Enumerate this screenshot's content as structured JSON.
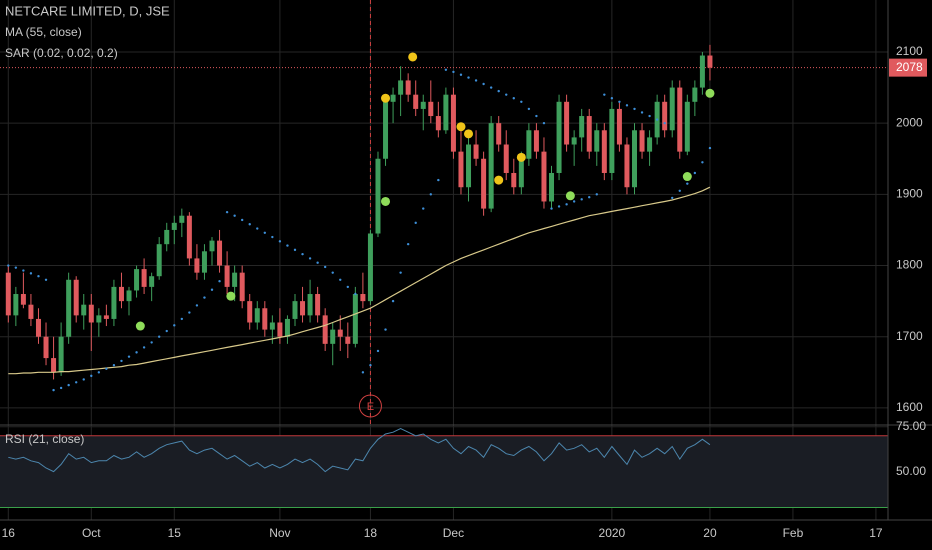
{
  "chart_data": {
    "type": "candlestick",
    "title": "NETCARE LIMITED, D, JSE",
    "ma_label": "MA (55, close)",
    "sar_label": "SAR (0.02, 0.02, 0.2)",
    "rsi_label": "RSI (21, close)",
    "event_label": "E",
    "event_x": 48,
    "last_price": 2078,
    "up_color": "#3f9f5c",
    "down_color": "#e05a5e",
    "ma_color": "#d8c98a",
    "sar_color": "#3d8fd8",
    "rsi_color": "#4c86ad",
    "xlim": [
      -1.1,
      116.6
    ],
    "xticks": [
      {
        "value": 0,
        "label": "16"
      },
      {
        "value": 11,
        "label": "Oct"
      },
      {
        "value": 22,
        "label": "15"
      },
      {
        "value": 36,
        "label": "Nov"
      },
      {
        "value": 48,
        "label": "18"
      },
      {
        "value": 59,
        "label": "Dec"
      },
      {
        "value": 80,
        "label": "2020"
      },
      {
        "value": 93,
        "label": "20"
      },
      {
        "value": 104,
        "label": "Feb"
      },
      {
        "value": 115,
        "label": "17"
      }
    ],
    "ylim": [
      1576,
      2173
    ],
    "yticks": [
      1600,
      1700,
      1800,
      1900,
      2000,
      2100
    ],
    "rsi_ylim": [
      23,
      76
    ],
    "rsi_yticks": [
      {
        "value": 75,
        "label": "75.00"
      },
      {
        "value": 50,
        "label": "50.00"
      }
    ],
    "rsi_bands": [
      70,
      30
    ],
    "candles": [
      [
        1790,
        1800,
        1720,
        1730
      ],
      [
        1730,
        1770,
        1715,
        1760
      ],
      [
        1760,
        1790,
        1740,
        1745
      ],
      [
        1745,
        1760,
        1715,
        1725
      ],
      [
        1725,
        1740,
        1690,
        1700
      ],
      [
        1700,
        1720,
        1660,
        1670
      ],
      [
        1670,
        1700,
        1640,
        1650
      ],
      [
        1650,
        1720,
        1645,
        1700
      ],
      [
        1700,
        1790,
        1690,
        1780
      ],
      [
        1780,
        1785,
        1720,
        1730
      ],
      [
        1730,
        1760,
        1710,
        1745
      ],
      [
        1745,
        1760,
        1680,
        1720
      ],
      [
        1720,
        1740,
        1700,
        1730
      ],
      [
        1730,
        1745,
        1715,
        1725
      ],
      [
        1725,
        1780,
        1715,
        1770
      ],
      [
        1770,
        1790,
        1740,
        1750
      ],
      [
        1750,
        1770,
        1730,
        1765
      ],
      [
        1765,
        1800,
        1755,
        1795
      ],
      [
        1795,
        1810,
        1760,
        1770
      ],
      [
        1770,
        1790,
        1750,
        1785
      ],
      [
        1785,
        1840,
        1780,
        1830
      ],
      [
        1830,
        1860,
        1820,
        1850
      ],
      [
        1850,
        1870,
        1830,
        1860
      ],
      [
        1860,
        1880,
        1840,
        1870
      ],
      [
        1870,
        1875,
        1800,
        1810
      ],
      [
        1810,
        1830,
        1780,
        1790
      ],
      [
        1790,
        1830,
        1780,
        1820
      ],
      [
        1820,
        1840,
        1800,
        1835
      ],
      [
        1835,
        1850,
        1790,
        1800
      ],
      [
        1800,
        1820,
        1760,
        1770
      ],
      [
        1770,
        1800,
        1750,
        1790
      ],
      [
        1790,
        1800,
        1740,
        1750
      ],
      [
        1750,
        1760,
        1710,
        1720
      ],
      [
        1720,
        1750,
        1710,
        1740
      ],
      [
        1740,
        1750,
        1700,
        1710
      ],
      [
        1710,
        1730,
        1690,
        1720
      ],
      [
        1720,
        1740,
        1690,
        1700
      ],
      [
        1700,
        1730,
        1690,
        1725
      ],
      [
        1725,
        1760,
        1715,
        1750
      ],
      [
        1750,
        1770,
        1720,
        1730
      ],
      [
        1730,
        1780,
        1720,
        1760
      ],
      [
        1760,
        1770,
        1720,
        1730
      ],
      [
        1730,
        1740,
        1680,
        1690
      ],
      [
        1690,
        1720,
        1660,
        1710
      ],
      [
        1710,
        1730,
        1680,
        1700
      ],
      [
        1700,
        1720,
        1670,
        1690
      ],
      [
        1690,
        1770,
        1685,
        1760
      ],
      [
        1760,
        1790,
        1740,
        1750
      ],
      [
        1750,
        1850,
        1745,
        1845
      ],
      [
        1845,
        1960,
        1840,
        1950
      ],
      [
        1950,
        2040,
        1940,
        2030
      ],
      [
        2030,
        2050,
        2000,
        2040
      ],
      [
        2040,
        2080,
        2010,
        2060
      ],
      [
        2060,
        2070,
        2030,
        2040
      ],
      [
        2040,
        2060,
        2010,
        2020
      ],
      [
        2020,
        2040,
        1990,
        2030
      ],
      [
        2030,
        2060,
        2000,
        2010
      ],
      [
        2010,
        2030,
        1980,
        1990
      ],
      [
        1990,
        2050,
        1985,
        2040
      ],
      [
        2040,
        2050,
        1950,
        1960
      ],
      [
        1960,
        2000,
        1900,
        1910
      ],
      [
        1910,
        1980,
        1890,
        1970
      ],
      [
        1970,
        1990,
        1940,
        1950
      ],
      [
        1950,
        1960,
        1870,
        1880
      ],
      [
        1880,
        2010,
        1875,
        2000
      ],
      [
        2000,
        2010,
        1960,
        1970
      ],
      [
        1970,
        1990,
        1920,
        1930
      ],
      [
        1930,
        1950,
        1900,
        1910
      ],
      [
        1910,
        1960,
        1900,
        1950
      ],
      [
        1950,
        2000,
        1940,
        1990
      ],
      [
        1990,
        2000,
        1950,
        1960
      ],
      [
        1960,
        1980,
        1880,
        1890
      ],
      [
        1890,
        1940,
        1880,
        1930
      ],
      [
        1930,
        2040,
        1920,
        2030
      ],
      [
        2030,
        2040,
        1960,
        1970
      ],
      [
        1970,
        1990,
        1940,
        1980
      ],
      [
        1980,
        2020,
        1960,
        2010
      ],
      [
        2010,
        2020,
        1950,
        1960
      ],
      [
        1960,
        2000,
        1940,
        1990
      ],
      [
        1990,
        2000,
        1920,
        1930
      ],
      [
        1930,
        2030,
        1920,
        2020
      ],
      [
        2020,
        2030,
        1960,
        1970
      ],
      [
        1970,
        1980,
        1900,
        1910
      ],
      [
        1910,
        2000,
        1900,
        1990
      ],
      [
        1990,
        2000,
        1950,
        1960
      ],
      [
        1960,
        1990,
        1940,
        1980
      ],
      [
        1980,
        2040,
        1970,
        2030
      ],
      [
        2030,
        2040,
        1980,
        1990
      ],
      [
        1990,
        2060,
        1980,
        2050
      ],
      [
        2050,
        2060,
        1950,
        1960
      ],
      [
        1960,
        2040,
        1955,
        2030
      ],
      [
        2030,
        2060,
        2010,
        2050
      ],
      [
        2050,
        2100,
        2040,
        2095
      ],
      [
        2095,
        2110,
        2060,
        2078
      ]
    ],
    "ma": [
      1648,
      1648,
      1649,
      1649,
      1650,
      1650,
      1650,
      1651,
      1651,
      1652,
      1653,
      1654,
      1655,
      1656,
      1657,
      1658,
      1660,
      1661,
      1663,
      1665,
      1667,
      1669,
      1671,
      1673,
      1675,
      1677,
      1679,
      1681,
      1683,
      1685,
      1687,
      1689,
      1691,
      1693,
      1695,
      1697,
      1699,
      1701,
      1704,
      1707,
      1710,
      1713,
      1716,
      1720,
      1724,
      1728,
      1732,
      1736,
      1740,
      1746,
      1752,
      1758,
      1764,
      1770,
      1776,
      1782,
      1788,
      1794,
      1800,
      1805,
      1810,
      1814,
      1818,
      1822,
      1826,
      1830,
      1834,
      1838,
      1842,
      1846,
      1849,
      1852,
      1855,
      1858,
      1861,
      1864,
      1867,
      1870,
      1872,
      1874,
      1876,
      1878,
      1880,
      1882,
      1884,
      1886,
      1888,
      1890,
      1892,
      1895,
      1898,
      1901,
      1905,
      1910
    ],
    "sar": [
      1800,
      1797,
      1793,
      1789,
      1785,
      1780,
      1625,
      1628,
      1632,
      1636,
      1640,
      1645,
      1650,
      1655,
      1660,
      1666,
      1672,
      1678,
      1685,
      1692,
      1700,
      1708,
      1716,
      1725,
      1734,
      1744,
      1755,
      1766,
      1778,
      1875,
      1870,
      1864,
      1858,
      1852,
      1846,
      1840,
      1834,
      1828,
      1822,
      1816,
      1810,
      1804,
      1798,
      1790,
      1780,
      1770,
      1760,
      1650,
      1660,
      1680,
      1710,
      1750,
      1790,
      1830,
      1860,
      1880,
      1900,
      1920,
      2075,
      2072,
      2068,
      2064,
      2060,
      2055,
      2050,
      2045,
      2040,
      2035,
      2030,
      2020,
      2010,
      2000,
      1880,
      1883,
      1886,
      1890,
      1893,
      1896,
      1900,
      2040,
      2035,
      2030,
      2025,
      2020,
      2015,
      2010,
      2005,
      2000,
      1895,
      1905,
      1915,
      1930,
      1945,
      1965
    ],
    "markers_yellow": [
      [
        50,
        2035
      ],
      [
        53.6,
        2093
      ],
      [
        60,
        1995
      ],
      [
        61,
        1985
      ],
      [
        65,
        1920
      ],
      [
        68,
        1952
      ]
    ],
    "markers_green": [
      [
        17.5,
        1715
      ],
      [
        29.5,
        1757
      ],
      [
        50,
        1890
      ],
      [
        74.5,
        1898
      ],
      [
        90,
        1925
      ],
      [
        93,
        2042
      ]
    ],
    "rsi": [
      58,
      57,
      58,
      56,
      55,
      52,
      50,
      54,
      60,
      57,
      58,
      55,
      56,
      56,
      59,
      57,
      58,
      61,
      58,
      60,
      63,
      65,
      66,
      67,
      62,
      60,
      62,
      63,
      60,
      57,
      59,
      56,
      53,
      55,
      52,
      54,
      52,
      54,
      57,
      55,
      57,
      54,
      50,
      53,
      52,
      51,
      57,
      56,
      63,
      68,
      71,
      72,
      74,
      72,
      70,
      71,
      68,
      66,
      68,
      63,
      60,
      64,
      62,
      58,
      65,
      63,
      60,
      59,
      62,
      64,
      61,
      56,
      60,
      66,
      62,
      63,
      65,
      61,
      63,
      58,
      64,
      59,
      54,
      62,
      58,
      60,
      63,
      60,
      64,
      57,
      63,
      65,
      68,
      65
    ]
  }
}
